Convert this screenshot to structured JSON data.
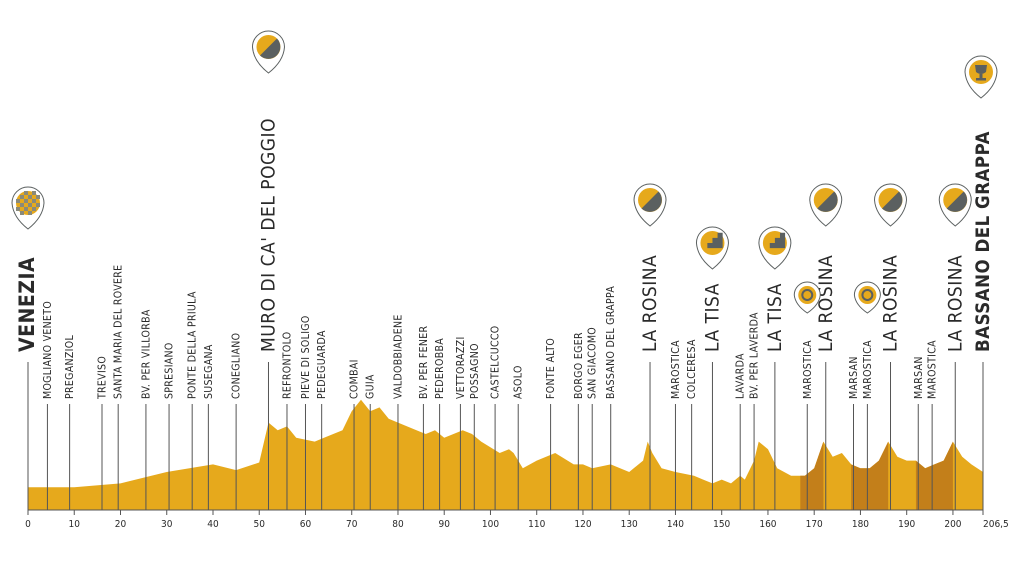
{
  "chart_data": {
    "type": "area",
    "title": "",
    "xlabel": "",
    "ylabel": "",
    "xlim": [
      0,
      206.5
    ],
    "x_ticks": [
      {
        "value": 0,
        "label": "0"
      },
      {
        "value": 10,
        "label": "10"
      },
      {
        "value": 20,
        "label": "20"
      },
      {
        "value": 30,
        "label": "30"
      },
      {
        "value": 40,
        "label": "40"
      },
      {
        "value": 50,
        "label": "50"
      },
      {
        "value": 60,
        "label": "60"
      },
      {
        "value": 70,
        "label": "70"
      },
      {
        "value": 80,
        "label": "80"
      },
      {
        "value": 90,
        "label": "90"
      },
      {
        "value": 100,
        "label": "100"
      },
      {
        "value": 110,
        "label": "110"
      },
      {
        "value": 120,
        "label": "120"
      },
      {
        "value": 130,
        "label": "130"
      },
      {
        "value": 140,
        "label": "140"
      },
      {
        "value": 150,
        "label": "150"
      },
      {
        "value": 160,
        "label": "160"
      },
      {
        "value": 170,
        "label": "170"
      },
      {
        "value": 180,
        "label": "180"
      },
      {
        "value": 190,
        "label": "190"
      },
      {
        "value": 200,
        "label": "200"
      },
      {
        "value": 206.5,
        "label": "206,5"
      }
    ],
    "profile": [
      [
        0,
        12
      ],
      [
        10,
        12
      ],
      [
        20,
        14
      ],
      [
        30,
        20
      ],
      [
        40,
        24
      ],
      [
        45,
        21
      ],
      [
        50,
        25
      ],
      [
        52,
        46
      ],
      [
        54,
        42
      ],
      [
        56,
        44
      ],
      [
        58,
        38
      ],
      [
        62,
        36
      ],
      [
        64,
        38
      ],
      [
        68,
        42
      ],
      [
        70,
        52
      ],
      [
        72,
        58
      ],
      [
        74,
        52
      ],
      [
        76,
        54
      ],
      [
        78,
        48
      ],
      [
        80,
        46
      ],
      [
        84,
        42
      ],
      [
        86,
        40
      ],
      [
        88,
        42
      ],
      [
        90,
        38
      ],
      [
        92,
        40
      ],
      [
        94,
        42
      ],
      [
        96,
        40
      ],
      [
        98,
        36
      ],
      [
        102,
        30
      ],
      [
        104,
        32
      ],
      [
        105,
        30
      ],
      [
        106,
        26
      ],
      [
        107,
        22
      ],
      [
        110,
        26
      ],
      [
        114,
        30
      ],
      [
        118,
        24
      ],
      [
        120,
        24
      ],
      [
        122,
        22
      ],
      [
        126,
        24
      ],
      [
        130,
        20
      ],
      [
        133,
        26
      ],
      [
        134,
        36
      ],
      [
        135,
        30
      ],
      [
        137,
        22
      ],
      [
        140,
        20
      ],
      [
        144,
        18
      ],
      [
        146,
        16
      ],
      [
        148,
        14
      ],
      [
        150,
        16
      ],
      [
        152,
        14
      ],
      [
        154,
        18
      ],
      [
        155,
        16
      ],
      [
        157,
        26
      ],
      [
        158,
        36
      ],
      [
        160,
        32
      ],
      [
        162,
        22
      ],
      [
        165,
        18
      ],
      [
        168,
        18
      ],
      [
        170,
        22
      ],
      [
        172,
        36
      ],
      [
        174,
        28
      ],
      [
        176,
        30
      ],
      [
        178,
        24
      ],
      [
        180,
        22
      ],
      [
        182,
        22
      ],
      [
        184,
        26
      ],
      [
        186,
        36
      ],
      [
        188,
        28
      ],
      [
        190,
        26
      ],
      [
        192,
        26
      ],
      [
        194,
        22
      ],
      [
        196,
        24
      ],
      [
        198,
        26
      ],
      [
        200,
        36
      ],
      [
        202,
        28
      ],
      [
        204,
        24
      ],
      [
        206.5,
        20
      ]
    ],
    "shaded_ranges": [
      [
        167,
        172
      ],
      [
        178,
        186
      ],
      [
        192,
        200
      ]
    ],
    "locations": [
      {
        "km": 0,
        "label": "VENEZIA",
        "style": "major"
      },
      {
        "km": 4.2,
        "label": "MOGLIANO VENETO",
        "style": "minor"
      },
      {
        "km": 9,
        "label": "PREGANZIOL",
        "style": "minor"
      },
      {
        "km": 16,
        "label": "TREVISO",
        "style": "minor"
      },
      {
        "km": 19.5,
        "label": "SANTA MARIA DEL ROVERE",
        "style": "minor"
      },
      {
        "km": 25.5,
        "label": "BV. PER VILLORBA",
        "style": "minor"
      },
      {
        "km": 30.5,
        "label": "SPRESIANO",
        "style": "minor"
      },
      {
        "km": 35.5,
        "label": "PONTE DELLA PRIULA",
        "style": "minor"
      },
      {
        "km": 39,
        "label": "SUSEGANA",
        "style": "minor"
      },
      {
        "km": 45,
        "label": "CONEGLIANO",
        "style": "minor"
      },
      {
        "km": 52,
        "label": "MURO DI CA' DEL POGGIO",
        "style": "climb"
      },
      {
        "km": 56,
        "label": "REFRONTOLO",
        "style": "minor"
      },
      {
        "km": 60,
        "label": "PIEVE DI SOLIGO",
        "style": "minor"
      },
      {
        "km": 63.5,
        "label": "PEDEGUARDA",
        "style": "minor"
      },
      {
        "km": 70.5,
        "label": "COMBAI",
        "style": "minor"
      },
      {
        "km": 74,
        "label": "GUIA",
        "style": "minor"
      },
      {
        "km": 80,
        "label": "VALDOBBIADENE",
        "style": "minor"
      },
      {
        "km": 85.5,
        "label": "BV. PER FENER",
        "style": "minor"
      },
      {
        "km": 89,
        "label": "PEDEROBBA",
        "style": "minor"
      },
      {
        "km": 93.5,
        "label": "VETTORAZZI",
        "style": "minor"
      },
      {
        "km": 96.5,
        "label": "POSSAGNO",
        "style": "minor"
      },
      {
        "km": 101,
        "label": "CASTELCUCCO",
        "style": "minor"
      },
      {
        "km": 106,
        "label": "ASOLO",
        "style": "minor"
      },
      {
        "km": 113,
        "label": "FONTE ALTO",
        "style": "minor"
      },
      {
        "km": 119,
        "label": "BORGO EGER",
        "style": "minor"
      },
      {
        "km": 122,
        "label": "SAN GIACOMO",
        "style": "minor"
      },
      {
        "km": 126,
        "label": "BASSANO DEL GRAPPA",
        "style": "minor"
      },
      {
        "km": 134.5,
        "label": "LA ROSINA",
        "style": "climb"
      },
      {
        "km": 140,
        "label": "MAROSTICA",
        "style": "minor"
      },
      {
        "km": 143.5,
        "label": "COLCERESA",
        "style": "minor"
      },
      {
        "km": 148,
        "label": "LA TISA",
        "style": "climb"
      },
      {
        "km": 154,
        "label": "LAVARDA",
        "style": "minor"
      },
      {
        "km": 157,
        "label": "BV. PER LAVERDA",
        "style": "minor"
      },
      {
        "km": 161.5,
        "label": "LA TISA",
        "style": "climb"
      },
      {
        "km": 168.5,
        "label": "MAROSTICA",
        "style": "minor"
      },
      {
        "km": 172.5,
        "label": "LA ROSINA",
        "style": "climb"
      },
      {
        "km": 178.5,
        "label": "MARSAN",
        "style": "minor"
      },
      {
        "km": 181.5,
        "label": "MAROSTICA",
        "style": "minor"
      },
      {
        "km": 186.5,
        "label": "LA ROSINA",
        "style": "climb"
      },
      {
        "km": 192.5,
        "label": "MARSAN",
        "style": "minor"
      },
      {
        "km": 195.5,
        "label": "MAROSTICA",
        "style": "minor"
      },
      {
        "km": 200.5,
        "label": "LA ROSINA",
        "style": "climb"
      },
      {
        "km": 206.5,
        "label": "BASSANO DEL GRAPPA",
        "style": "finish"
      }
    ],
    "markers": [
      {
        "km": 0,
        "icon": "start-checkered-icon",
        "size": "large"
      },
      {
        "km": 52,
        "icon": "climb-icon",
        "size": "large"
      },
      {
        "km": 134.5,
        "icon": "climb-icon",
        "size": "large"
      },
      {
        "km": 148,
        "icon": "steep-climb-icon",
        "size": "large"
      },
      {
        "km": 161.5,
        "icon": "steep-climb-icon",
        "size": "large"
      },
      {
        "km": 168.5,
        "icon": "intermediate-sprint-icon",
        "size": "small"
      },
      {
        "km": 172.5,
        "icon": "climb-icon",
        "size": "large"
      },
      {
        "km": 181.5,
        "icon": "intermediate-sprint-icon",
        "size": "small"
      },
      {
        "km": 186.5,
        "icon": "climb-icon",
        "size": "large"
      },
      {
        "km": 200.5,
        "icon": "climb-icon",
        "size": "large"
      },
      {
        "km": 206.5,
        "icon": "finish-trophy-icon",
        "size": "large"
      }
    ],
    "colors": {
      "profile_fill": "#e6a91c",
      "profile_dark": "#c37f1a",
      "pin_outline": "#5b6060",
      "icon_dark": "#5b6060",
      "icon_yellow": "#e6a91c",
      "text": "#2a2a2a"
    }
  }
}
